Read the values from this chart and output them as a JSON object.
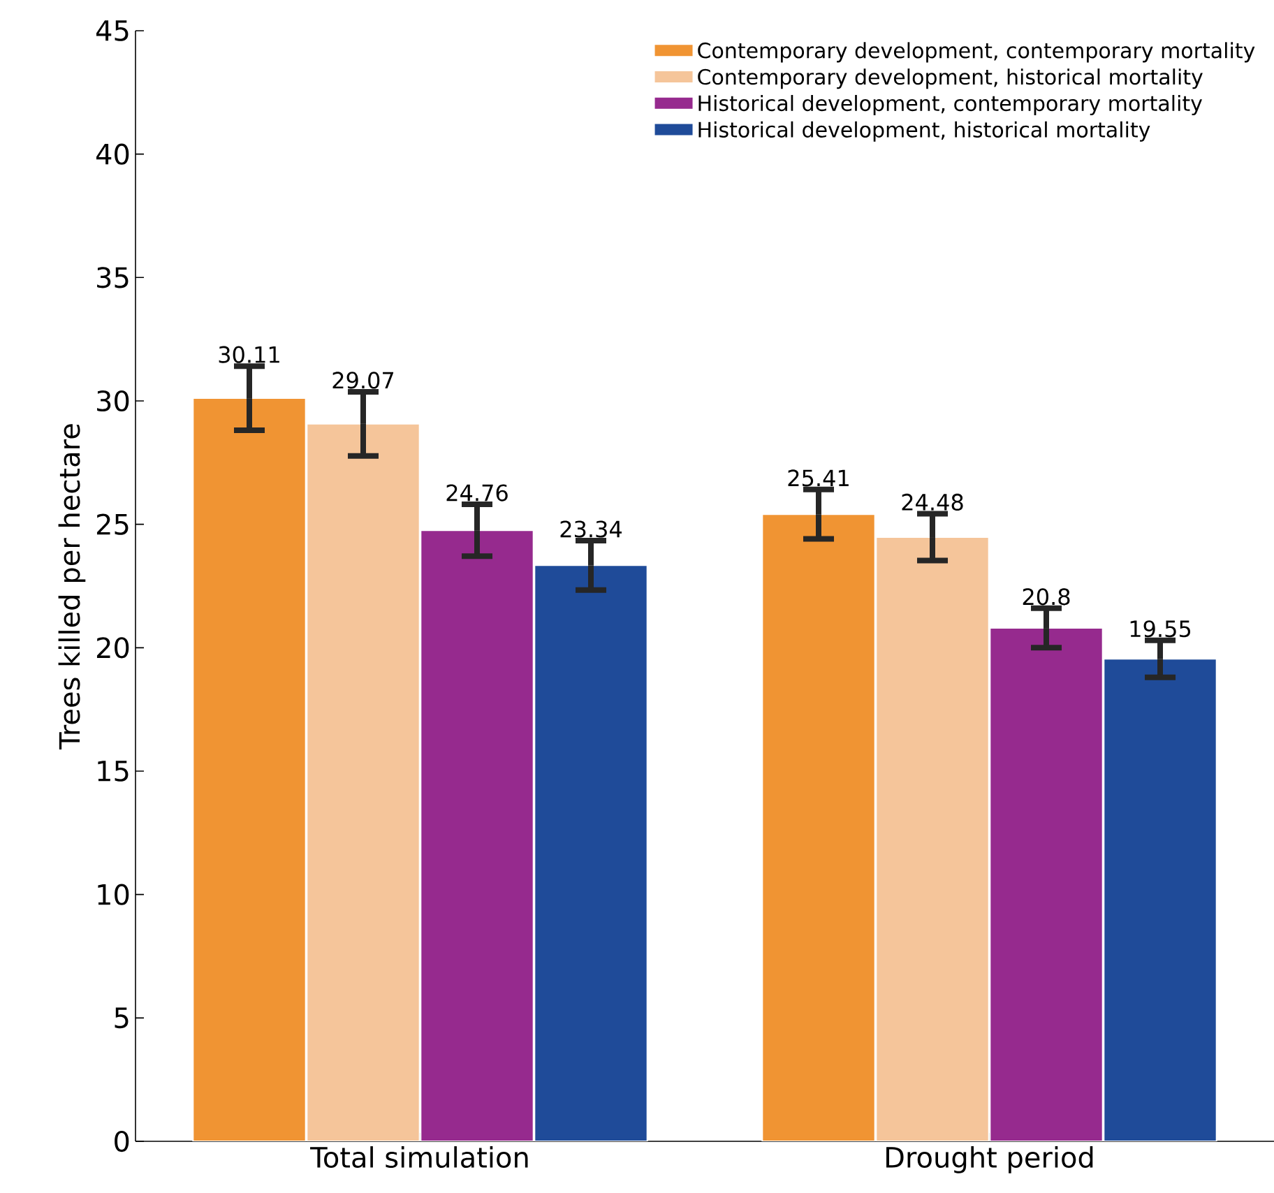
{
  "chart_data": {
    "type": "bar",
    "ylabel": "Trees killed per hectare",
    "categories": [
      "Total simulation",
      "Drought period"
    ],
    "series": [
      {
        "name": "Contemporary development, contemporary mortality",
        "color": "#f09433",
        "values": [
          30.11,
          25.41
        ],
        "errors": [
          1.3,
          1.0
        ]
      },
      {
        "name": "Contemporary development, historical mortality",
        "color": "#f5c59a",
        "values": [
          29.07,
          24.48
        ],
        "errors": [
          1.3,
          0.95
        ]
      },
      {
        "name": "Historical development, contemporary mortality",
        "color": "#962a8e",
        "values": [
          24.76,
          20.8
        ],
        "errors": [
          1.05,
          0.8
        ]
      },
      {
        "name": "Historical development, historical mortality",
        "color": "#1f4b99",
        "values": [
          23.34,
          19.55
        ],
        "errors": [
          1.0,
          0.75
        ]
      }
    ],
    "ylim": [
      0,
      45
    ],
    "yticks": [
      0,
      5,
      10,
      15,
      20,
      25,
      30,
      35,
      40,
      45
    ],
    "grid": false,
    "legend": "top right",
    "data_labels": true
  }
}
